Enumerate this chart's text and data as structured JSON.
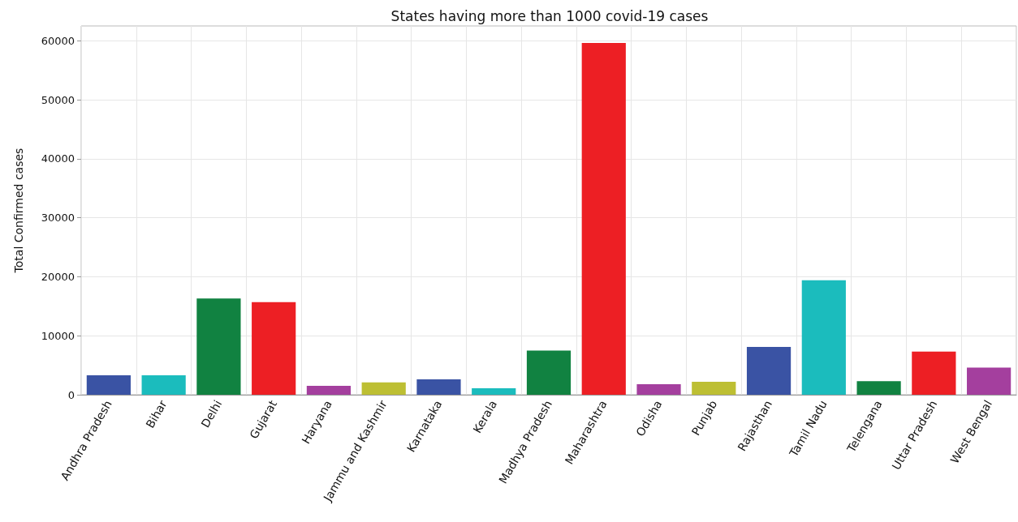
{
  "chart_data": {
    "type": "bar",
    "title": "States having more than 1000 covid-19 cases",
    "ylabel": "Total Confirmed cases",
    "categories": [
      "Andhra Pradesh",
      "Bihar",
      "Delhi",
      "Gujarat",
      "Haryana",
      "Jammu and Kashmir",
      "Karnataka",
      "Kerala",
      "Madhya Pradesh",
      "Maharashtra",
      "Odisha",
      "Punjab",
      "Rajasthan",
      "Tamil Nadu",
      "Telengana",
      "Uttar Pradesh",
      "West Bengal"
    ],
    "values": [
      3300,
      3300,
      16300,
      15700,
      1500,
      2100,
      2600,
      1100,
      7500,
      59600,
      1800,
      2200,
      8100,
      19400,
      2300,
      7300,
      4600
    ],
    "colors": [
      "#3a53a4",
      "#1bbcbd",
      "#118241",
      "#ed1f24",
      "#a43f9e",
      "#bdbf33",
      "#3a53a4",
      "#1bbcbd",
      "#118241",
      "#ed1f24",
      "#a43f9e",
      "#bdbf33",
      "#3a53a4",
      "#1bbcbd",
      "#118241",
      "#ed1f24",
      "#a43f9e"
    ],
    "ylim": [
      0,
      62500
    ],
    "yticks": [
      0,
      10000,
      20000,
      30000,
      40000,
      50000,
      60000
    ],
    "grid": true
  }
}
